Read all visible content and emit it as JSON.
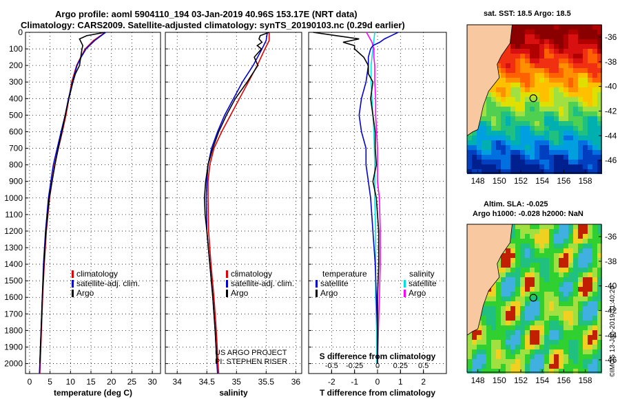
{
  "header": {
    "line1": "Argo profile: aoml 5904110_194 03-Jan-2019 40.96S 153.17E (NRT data)",
    "line2": "Climatology: CARS2009. Satellite-adjusted climatology: synTS_20190103.nc (0.29d earlier)"
  },
  "colors": {
    "climatology": "#e00000",
    "satellite": "#0000d0",
    "argo": "#000000",
    "sat_salinity": "#00e0e0",
    "argo_salinity_diff": "#ff00ff"
  },
  "chart_data": [
    {
      "type": "line",
      "panel": "temperature",
      "xlabel": "temperature (deg C)",
      "xlim": [
        -1,
        32
      ],
      "ylim": [
        2060,
        0
      ],
      "xticks": [
        "0",
        "5",
        "10",
        "15",
        "20",
        "25",
        "30"
      ],
      "yticks": [
        "0",
        "100",
        "200",
        "300",
        "400",
        "500",
        "600",
        "700",
        "800",
        "900",
        "1000",
        "1100",
        "1200",
        "1300",
        "1400",
        "1500",
        "1600",
        "1700",
        "1800",
        "1900",
        "2000"
      ],
      "legend": [
        "climatology",
        "satellite-adj. clim.",
        "Argo"
      ],
      "series": [
        {
          "name": "climatology",
          "depth": [
            0,
            50,
            100,
            150,
            200,
            300,
            400,
            500,
            600,
            800,
            1000,
            1200,
            1400,
            1600,
            1800,
            2000,
            2060
          ],
          "values": [
            18.5,
            15.6,
            13.6,
            12.5,
            11.5,
            10.3,
            9.6,
            8.9,
            8.0,
            6.1,
            4.9,
            4.1,
            3.6,
            3.2,
            2.9,
            2.6,
            2.5
          ]
        },
        {
          "name": "satellite-adj. clim.",
          "depth": [
            0,
            50,
            100,
            150,
            200,
            300,
            400,
            500,
            600,
            800,
            1000,
            1200,
            1400,
            1600,
            1800,
            2000,
            2060
          ],
          "values": [
            18.6,
            15.9,
            13.8,
            12.6,
            11.6,
            10.5,
            9.5,
            8.7,
            7.7,
            5.8,
            4.6,
            3.9,
            3.4,
            3.1,
            2.8,
            2.5,
            2.4
          ]
        },
        {
          "name": "Argo",
          "depth": [
            0,
            20,
            40,
            60,
            80,
            100,
            150,
            200,
            250,
            300,
            400,
            500,
            600,
            700,
            800,
            1000,
            1200,
            1400,
            1600,
            1800,
            2000
          ],
          "values": [
            18.4,
            14.0,
            12.2,
            12.6,
            13.0,
            12.8,
            12.5,
            12.2,
            11.2,
            10.6,
            9.6,
            8.7,
            7.9,
            7.0,
            6.2,
            4.8,
            4.0,
            3.5,
            3.1,
            2.8,
            2.5
          ]
        }
      ]
    },
    {
      "type": "line",
      "panel": "salinity",
      "xlabel": "salinity",
      "xlim": [
        33.8,
        36.1
      ],
      "ylim": [
        2060,
        0
      ],
      "xticks": [
        "34",
        "34.5",
        "35",
        "35.5",
        "36"
      ],
      "legend": [
        "climatology",
        "satellite-adj. clim.",
        "Argo"
      ],
      "annotation": [
        "US ARGO PROJECT",
        "PI: STEPHEN RISER"
      ],
      "series": [
        {
          "name": "climatology",
          "depth": [
            0,
            50,
            100,
            200,
            300,
            400,
            500,
            600,
            700,
            800,
            900,
            1000,
            1200,
            1400,
            1600,
            1800,
            2000,
            2060
          ],
          "values": [
            35.55,
            35.55,
            35.48,
            35.35,
            35.2,
            35.05,
            34.9,
            34.75,
            34.62,
            34.55,
            34.52,
            34.52,
            34.53,
            34.57,
            34.62,
            34.66,
            34.69,
            34.7
          ]
        },
        {
          "name": "satellite-adj. clim.",
          "depth": [
            0,
            50,
            100,
            200,
            300,
            400,
            500,
            600,
            700,
            800,
            900,
            1000,
            1200,
            1400,
            1600,
            1800,
            2000,
            2060
          ],
          "values": [
            35.52,
            35.5,
            35.43,
            35.28,
            35.1,
            34.95,
            34.8,
            34.68,
            34.58,
            34.52,
            34.5,
            34.49,
            34.5,
            34.55,
            34.6,
            34.64,
            34.67,
            34.68
          ]
        },
        {
          "name": "Argo",
          "depth": [
            0,
            20,
            40,
            60,
            80,
            100,
            150,
            200,
            300,
            400,
            500,
            600,
            700,
            800,
            900,
            1000,
            1100,
            1200,
            1400,
            1600,
            1800,
            2000
          ],
          "values": [
            35.55,
            35.4,
            35.38,
            35.43,
            35.35,
            35.42,
            35.3,
            35.36,
            35.18,
            34.98,
            34.83,
            34.7,
            34.6,
            34.52,
            34.48,
            34.46,
            34.47,
            34.5,
            34.55,
            34.6,
            34.64,
            34.67
          ]
        }
      ]
    },
    {
      "type": "line",
      "panel": "difference",
      "xlabel": "T difference from climatology",
      "xlabel2": "S difference from climatology",
      "xlim": [
        -3,
        3
      ],
      "ylim": [
        2060,
        0
      ],
      "xticks": [
        "-2",
        "-1",
        "0",
        "1",
        "2"
      ],
      "xticks2": [
        "-0.5",
        "-0.25",
        "0",
        "0.25",
        "0.5"
      ],
      "legend_left_title": "temperature",
      "legend_right_title": "salinity",
      "legend_left": [
        "satellite",
        "Argo"
      ],
      "legend_right": [
        "satellite",
        "Argo"
      ],
      "series": [
        {
          "name": "T satellite",
          "depth": [
            0,
            20,
            40,
            60,
            80,
            100,
            150,
            200,
            300,
            400,
            500,
            600,
            700,
            800,
            900,
            1000,
            1200,
            1400,
            1600,
            1800,
            2000
          ],
          "values": [
            0.9,
            0.6,
            0.3,
            0.1,
            -0.2,
            -0.3,
            -0.4,
            -0.4,
            -0.5,
            -0.7,
            -0.8,
            -0.7,
            -0.5,
            -0.5,
            -0.4,
            -0.3,
            -0.2,
            -0.1,
            -0.05,
            0,
            0
          ]
        },
        {
          "name": "T Argo",
          "depth": [
            0,
            20,
            40,
            60,
            80,
            100,
            150,
            200,
            250,
            300,
            400,
            500,
            600,
            700,
            800,
            900,
            1000,
            1200,
            1400,
            1600,
            1800,
            2000
          ],
          "values": [
            -2.8,
            -1.8,
            -0.8,
            -1.5,
            -1.0,
            -1.0,
            -0.6,
            -0.4,
            -0.4,
            -0.2,
            -0.3,
            -0.2,
            -0.1,
            -0.1,
            -0.05,
            -0.2,
            -0.05,
            0.05,
            0.05,
            0,
            0,
            0
          ]
        },
        {
          "name": "S satellite",
          "depth": [
            0,
            50,
            100,
            200,
            300,
            400,
            500,
            600,
            800,
            1000,
            1200,
            1400,
            1600,
            1800,
            2000
          ],
          "values": [
            -0.03,
            -0.04,
            -0.05,
            -0.07,
            -0.07,
            -0.06,
            -0.05,
            -0.04,
            -0.03,
            -0.03,
            -0.02,
            -0.02,
            -0.02,
            -0.01,
            -0.01
          ]
        },
        {
          "name": "S Argo",
          "depth": [
            0,
            20,
            40,
            60,
            80,
            100,
            150,
            200,
            300,
            400,
            500,
            700,
            900,
            1000,
            1200,
            1400,
            1600,
            1800,
            2000
          ],
          "values": [
            -0.12,
            -0.1,
            -0.08,
            -0.06,
            -0.05,
            -0.04,
            -0.04,
            -0.03,
            -0.03,
            -0.02,
            -0.02,
            0.0,
            0.0,
            0.02,
            0.03,
            0.03,
            0.02,
            0.01,
            0.0
          ]
        }
      ]
    },
    {
      "type": "heatmap",
      "panel": "sst_map",
      "title": "sat. SST: 18.5 Argo: 18.5",
      "xlim": [
        147,
        159.5
      ],
      "ylim": [
        -47,
        -35
      ],
      "xticks": [
        "148",
        "150",
        "152",
        "154",
        "156",
        "158"
      ],
      "yticks": [
        "-36",
        "-38",
        "-40",
        "-42",
        "-44",
        "-46"
      ],
      "marker": {
        "lon": 153.17,
        "lat": -40.96
      }
    },
    {
      "type": "heatmap",
      "panel": "sla_map",
      "title": "Altim. SLA: -0.025",
      "subtitle": "Argo h1000: -0.028 h2000: NaN",
      "xlim": [
        147,
        159.5
      ],
      "ylim": [
        -47,
        -35
      ],
      "xticks": [
        "148",
        "150",
        "152",
        "154",
        "156",
        "158"
      ],
      "yticks": [
        "-36",
        "-38",
        "-40",
        "-42",
        "-44",
        "-46"
      ],
      "marker": {
        "lon": 153.17,
        "lat": -40.96
      }
    }
  ],
  "credit": "©IMOS 13-Jan-2019 11:40:20"
}
